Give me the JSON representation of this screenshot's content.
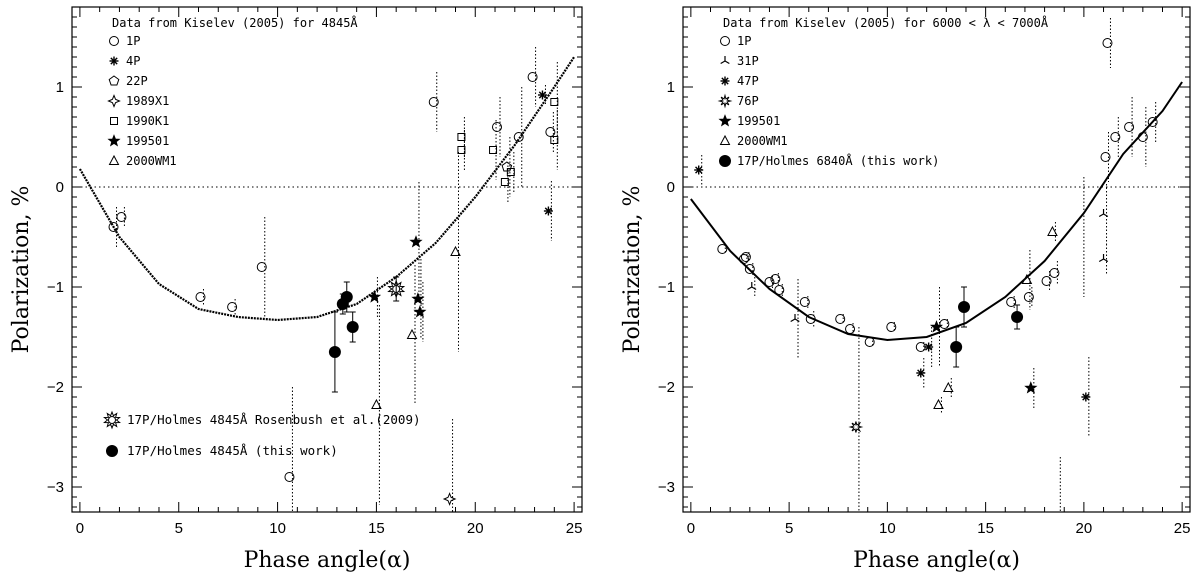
{
  "chart_data": [
    {
      "type": "scatter",
      "xlabel": "Phase angle(α)",
      "ylabel": "Polarization, %",
      "xlim": [
        -0.4,
        25.4
      ],
      "ylim": [
        -3.25,
        1.8
      ],
      "xticks": [
        "0",
        "5",
        "10",
        "15",
        "20",
        "25"
      ],
      "yticks": [
        "−3",
        "−2",
        "−1",
        "0",
        "1"
      ],
      "title": "Data from Kiselev (2005) for 4845Å",
      "curve": [
        [
          0,
          0.18
        ],
        [
          2,
          -0.5
        ],
        [
          4,
          -0.97
        ],
        [
          6,
          -1.22
        ],
        [
          8,
          -1.3
        ],
        [
          10,
          -1.33
        ],
        [
          12,
          -1.3
        ],
        [
          14,
          -1.17
        ],
        [
          16,
          -0.9
        ],
        [
          18,
          -0.56
        ],
        [
          20,
          -0.1
        ],
        [
          22,
          0.42
        ],
        [
          24,
          1.0
        ],
        [
          25,
          1.3
        ]
      ],
      "series": [
        {
          "name": "1P",
          "marker": "circle",
          "points": [
            [
              1.7,
              -0.4,
              0.2
            ],
            [
              2.1,
              -0.3,
              0.1
            ],
            [
              6.1,
              -1.1,
              0.08
            ],
            [
              7.7,
              -1.2,
              0.08
            ],
            [
              9.2,
              -0.8,
              0.5
            ],
            [
              10.6,
              -2.9,
              0.9
            ],
            [
              17.9,
              0.85,
              0.3
            ],
            [
              21.1,
              0.6,
              0.3
            ],
            [
              22.2,
              0.5,
              0.5
            ],
            [
              22.9,
              1.1,
              0.3
            ],
            [
              23.8,
              0.55,
              0.2
            ]
          ]
        },
        {
          "name": "4P",
          "marker": "asterisk",
          "points": [
            [
              23.4,
              0.92,
              0.1
            ],
            [
              23.7,
              -0.24,
              0.3
            ]
          ]
        },
        {
          "name": "22P",
          "marker": "pentagon",
          "points": [
            [
              21.6,
              0.2,
              0.3
            ]
          ]
        },
        {
          "name": "1989X1",
          "marker": "star4",
          "points": [
            [
              18.7,
              -3.12,
              0.8
            ]
          ]
        },
        {
          "name": "1990K1",
          "marker": "square",
          "points": [
            [
              19.3,
              0.5,
              0.2
            ],
            [
              19.3,
              0.37,
              0.2
            ],
            [
              20.9,
              0.37,
              0.3
            ],
            [
              21.5,
              0.05,
              0.2
            ],
            [
              21.8,
              0.15,
              0.2
            ],
            [
              24.0,
              0.85,
              0.4
            ],
            [
              24.0,
              0.47,
              0.3
            ]
          ]
        },
        {
          "name": "199501",
          "marker": "star",
          "points": [
            [
              14.9,
              -1.1,
              0.2
            ],
            [
              17.0,
              -0.55,
              0.6
            ],
            [
              17.1,
              -1.12,
              0.4
            ],
            [
              17.2,
              -1.25,
              0.3
            ]
          ]
        },
        {
          "name": "2000WM1",
          "marker": "triangle",
          "points": [
            [
              15.0,
              -2.18,
              1.0
            ],
            [
              16.8,
              -1.48,
              0.7
            ],
            [
              19.0,
              -0.65,
              1.0
            ]
          ]
        },
        {
          "name": "17P/Holmes 4845Å Rosenbush et al.(2009)",
          "marker": "burst",
          "points": [
            [
              16.0,
              -1.02,
              0.12
            ]
          ]
        },
        {
          "name": "17P/Holmes 4845Å (this work)",
          "marker": "filled",
          "points": [
            [
              12.9,
              -1.65,
              0.4
            ],
            [
              13.3,
              -1.17,
              0.1
            ],
            [
              13.5,
              -1.1,
              0.15
            ],
            [
              13.8,
              -1.4,
              0.15
            ]
          ]
        }
      ]
    },
    {
      "type": "scatter",
      "xlabel": "Phase angle(α)",
      "ylabel": "Polarization, %",
      "xlim": [
        -0.4,
        25.4
      ],
      "ylim": [
        -3.25,
        1.8
      ],
      "xticks": [
        "0",
        "5",
        "10",
        "15",
        "20",
        "25"
      ],
      "yticks": [
        "−3",
        "−2",
        "−1",
        "0",
        "1"
      ],
      "title": "Data from Kiselev (2005) for 6000 < λ < 7000Å",
      "curve": [
        [
          0,
          -0.12
        ],
        [
          2,
          -0.64
        ],
        [
          4,
          -1.02
        ],
        [
          6,
          -1.3
        ],
        [
          8,
          -1.47
        ],
        [
          10,
          -1.53
        ],
        [
          12,
          -1.5
        ],
        [
          14,
          -1.36
        ],
        [
          16,
          -1.1
        ],
        [
          18,
          -0.74
        ],
        [
          20,
          -0.26
        ],
        [
          22,
          0.33
        ],
        [
          24,
          0.76
        ],
        [
          25,
          1.05
        ]
      ],
      "series": [
        {
          "name": "1P",
          "marker": "circle",
          "points": [
            [
              1.6,
              -0.62,
              0.05
            ],
            [
              2.7,
              -0.72,
              0.05
            ],
            [
              2.8,
              -0.7,
              0.05
            ],
            [
              3.0,
              -0.82,
              0.06
            ],
            [
              4.0,
              -0.95,
              0.06
            ],
            [
              4.3,
              -0.92,
              0.06
            ],
            [
              4.5,
              -1.03,
              0.06
            ],
            [
              5.8,
              -1.15,
              0.06
            ],
            [
              6.1,
              -1.32,
              0.08
            ],
            [
              7.6,
              -1.32,
              0.05
            ],
            [
              8.1,
              -1.42,
              0.06
            ],
            [
              9.1,
              -1.55,
              0.05
            ],
            [
              10.2,
              -1.4,
              0.05
            ],
            [
              11.7,
              -1.6,
              0.05
            ],
            [
              12.9,
              -1.37,
              0.05
            ],
            [
              16.3,
              -1.15,
              0.06
            ],
            [
              17.2,
              -1.1,
              0.1
            ],
            [
              18.1,
              -0.94,
              0.1
            ],
            [
              18.5,
              -0.86,
              0.12
            ],
            [
              21.1,
              0.3,
              0.25
            ],
            [
              21.6,
              0.5,
              0.2
            ],
            [
              22.3,
              0.6,
              0.3
            ],
            [
              23.0,
              0.5,
              0.3
            ],
            [
              23.5,
              0.65,
              0.2
            ],
            [
              21.2,
              1.44,
              0.25
            ]
          ]
        },
        {
          "name": "31P",
          "marker": "tri",
          "points": [
            [
              3.1,
              -1.0,
              0.1
            ],
            [
              5.3,
              -1.32,
              0.4
            ],
            [
              21.0,
              -0.27,
              0.3
            ],
            [
              21.0,
              -0.72,
              0.15
            ]
          ]
        },
        {
          "name": "47P",
          "marker": "asterisk",
          "points": [
            [
              0.4,
              0.17,
              0.15
            ],
            [
              11.7,
              -1.86,
              0.15
            ],
            [
              12.1,
              -1.6,
              0.2
            ],
            [
              20.1,
              -2.1,
              0.4
            ]
          ]
        },
        {
          "name": "76P",
          "marker": "star8",
          "points": [
            [
              8.4,
              -2.4,
              1.0
            ]
          ]
        },
        {
          "name": "199501",
          "marker": "star",
          "points": [
            [
              12.5,
              -1.4,
              0.4
            ],
            [
              17.3,
              -2.01,
              0.2
            ]
          ]
        },
        {
          "name": "2000WM1",
          "marker": "triangle",
          "points": [
            [
              12.6,
              -2.18,
              0.08
            ],
            [
              13.1,
              -2.01,
              0.1
            ],
            [
              17.1,
              -0.93,
              0.3
            ],
            [
              18.4,
              -0.45,
              0.1
            ]
          ]
        },
        {
          "name": "17P/Holmes 6840Å (this work)",
          "marker": "filled",
          "points": [
            [
              13.5,
              -1.6,
              0.2
            ],
            [
              13.9,
              -1.2,
              0.2
            ],
            [
              16.6,
              -1.3,
              0.12
            ]
          ]
        }
      ],
      "extra_errorbars": [
        [
          20.0,
          -0.5,
          0.6
        ],
        [
          18.8,
          -3.0,
          0.3
        ]
      ]
    }
  ]
}
